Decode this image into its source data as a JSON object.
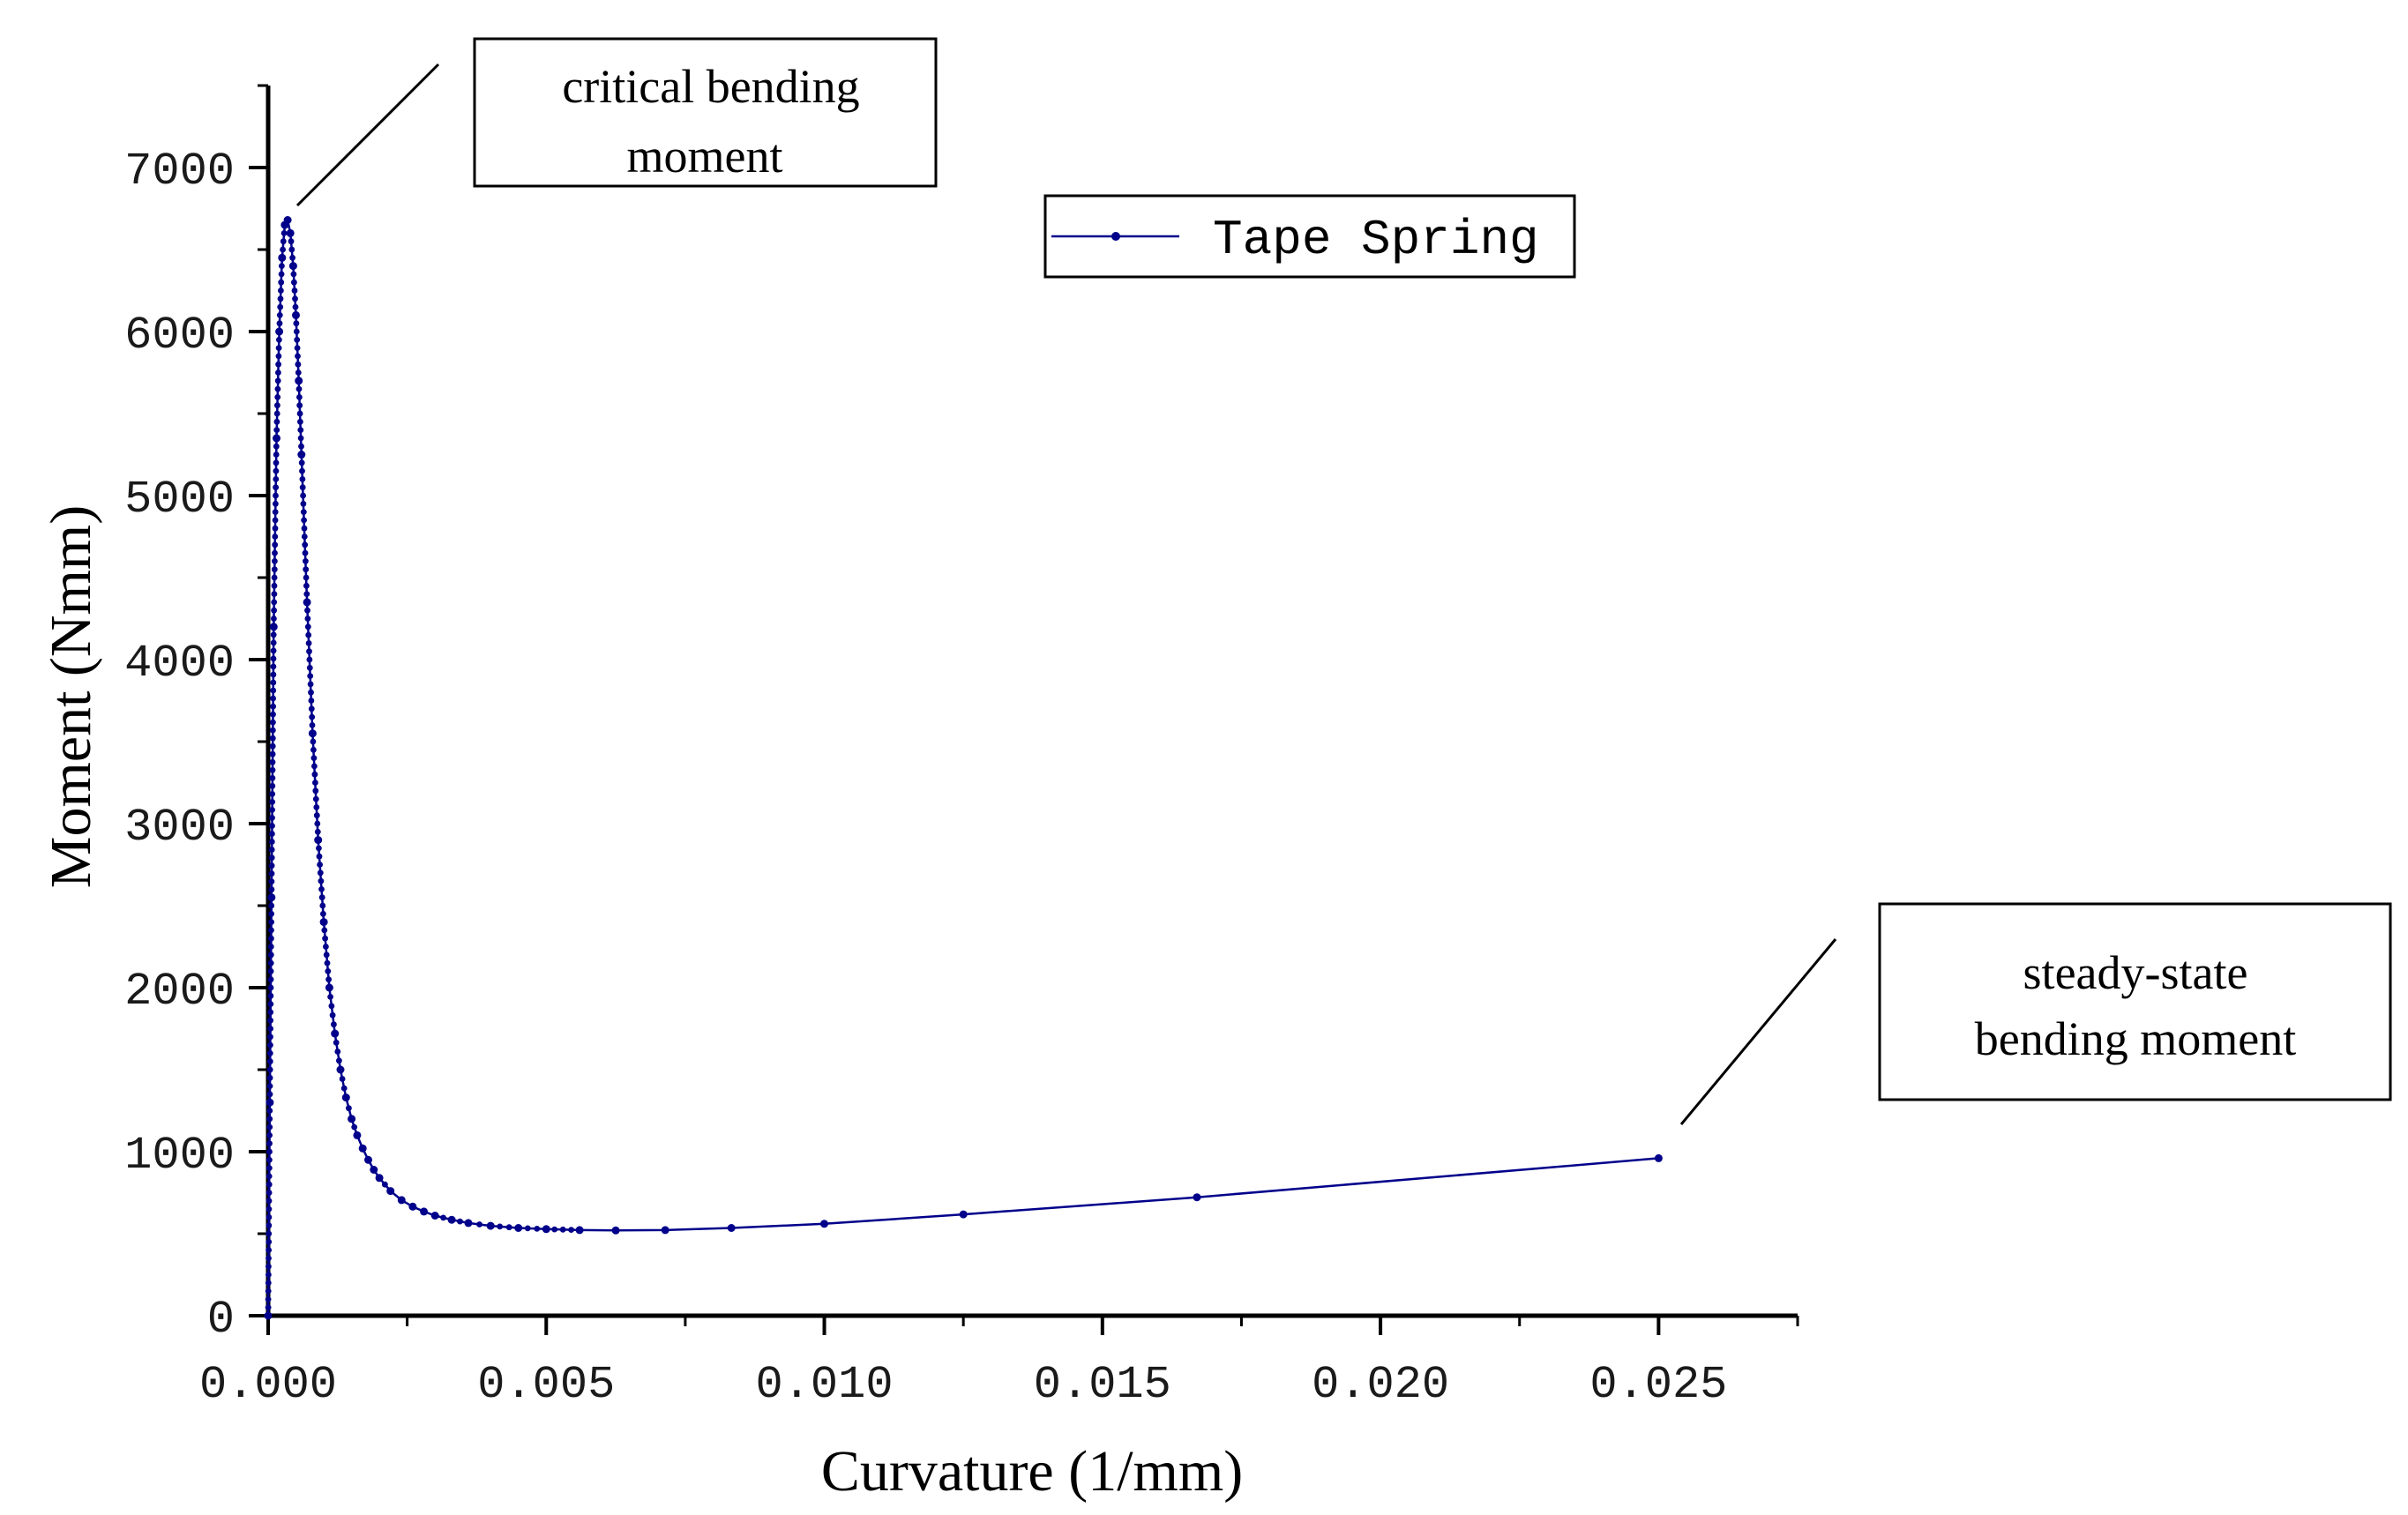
{
  "chart_data": {
    "type": "line",
    "title": "",
    "xlabel": "Curvature (1/mm)",
    "ylabel": "Moment (Nmm)",
    "xlim": [
      0,
      0.0275
    ],
    "ylim": [
      0,
      7500
    ],
    "x_ticks": [
      0.0,
      0.005,
      0.01,
      0.015,
      0.02,
      0.025
    ],
    "x_tick_labels": [
      "0.000",
      "0.005",
      "0.010",
      "0.015",
      "0.020",
      "0.025"
    ],
    "y_ticks": [
      0,
      1000,
      2000,
      3000,
      4000,
      5000,
      6000,
      7000
    ],
    "y_tick_labels": [
      "0",
      "1000",
      "2000",
      "3000",
      "4000",
      "5000",
      "6000",
      "7000"
    ],
    "grid": false,
    "legend_position": "top-center",
    "series": [
      {
        "name": "Tape Spring",
        "color": "#00008B",
        "marker": "dot",
        "x": [
          0.0,
          3e-05,
          6e-05,
          0.0001,
          0.00015,
          0.0002,
          0.00025,
          0.0003,
          0.00035,
          0.0004,
          0.00045,
          0.0005,
          0.00055,
          0.0006,
          0.0007,
          0.0008,
          0.0009,
          0.001,
          0.0011,
          0.0012,
          0.0013,
          0.0014,
          0.0015,
          0.0016,
          0.0017,
          0.0018,
          0.0019,
          0.002,
          0.0022,
          0.0024,
          0.0026,
          0.0028,
          0.003,
          0.0033,
          0.0036,
          0.004,
          0.0045,
          0.005,
          0.0056,
          0.00625,
          0.00714,
          0.00833,
          0.01,
          0.0125,
          0.0167,
          0.025
        ],
        "y": [
          0,
          1300,
          2550,
          4200,
          5350,
          6000,
          6450,
          6650,
          6680,
          6600,
          6400,
          6100,
          5700,
          5250,
          4350,
          3550,
          2900,
          2400,
          2000,
          1720,
          1500,
          1330,
          1200,
          1100,
          1020,
          950,
          890,
          840,
          760,
          705,
          665,
          635,
          610,
          585,
          565,
          548,
          535,
          528,
          522,
          520,
          522,
          535,
          560,
          618,
          722,
          960
        ]
      }
    ],
    "annotations": [
      {
        "lines": [
          "critical bending",
          "moment"
        ],
        "target_x": 0.0003,
        "target_y": 6680
      },
      {
        "lines": [
          "steady-state",
          "bending moment"
        ],
        "target_x": 0.025,
        "target_y": 960
      }
    ]
  }
}
